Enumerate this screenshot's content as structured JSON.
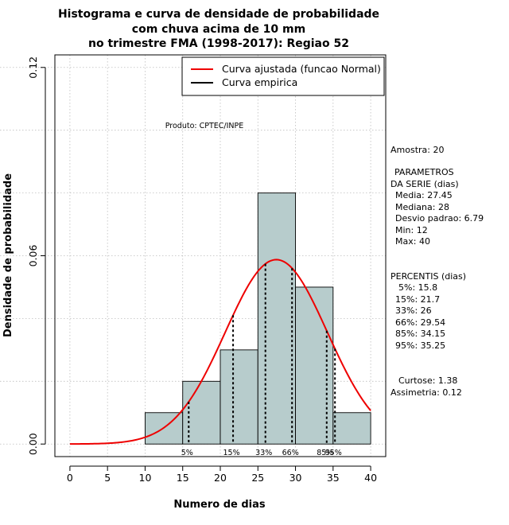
{
  "chart_data": {
    "type": "histogram",
    "title_lines": [
      "Histograma e curva de densidade de probabilidade",
      "com chuva acima de 10 mm",
      "no trimestre FMA (1998-2017): Regiao 52"
    ],
    "xlabel": "Numero de dias",
    "ylabel": "Densidade de probabilidade",
    "xlim": [
      -2,
      42
    ],
    "ylim": [
      -0.004,
      0.124
    ],
    "xticks": [
      0,
      5,
      10,
      15,
      20,
      25,
      30,
      35,
      40
    ],
    "yticks": [
      0.0,
      0.06,
      0.12
    ],
    "ytick_labels": [
      "0.00",
      "0.06",
      "0.12"
    ],
    "grid": true,
    "bins": [
      {
        "start": 10,
        "end": 15,
        "density": 0.01
      },
      {
        "start": 15,
        "end": 20,
        "density": 0.02
      },
      {
        "start": 20,
        "end": 25,
        "density": 0.03
      },
      {
        "start": 25,
        "end": 30,
        "density": 0.08
      },
      {
        "start": 30,
        "end": 35,
        "density": 0.05
      },
      {
        "start": 35,
        "end": 40,
        "density": 0.01
      }
    ],
    "normal_fit": {
      "mean": 27.45,
      "sd": 6.79,
      "color": "#ee0000"
    },
    "percentiles": [
      {
        "label": "5%",
        "value": 15.8
      },
      {
        "label": "15%",
        "value": 21.7
      },
      {
        "label": "33%",
        "value": 26
      },
      {
        "label": "66%",
        "value": 29.54
      },
      {
        "label": "85%",
        "value": 34.15
      },
      {
        "label": "95%",
        "value": 35.25
      }
    ],
    "legend": [
      {
        "label": "Curva ajustada (funcao Normal)",
        "color": "#ee0000"
      },
      {
        "label": "Curva empirica",
        "color": "#000000"
      }
    ],
    "legend_position": "top-right",
    "annotation": "Produto: CPTEC/INPE",
    "bar_fill": "#b7cccc"
  },
  "stats": {
    "amostra": "Amostra: 20",
    "param_header_1": "PARAMETROS",
    "param_header_2": "DA SERIE (dias)",
    "media": "Media: 27.45",
    "mediana": "Mediana: 28",
    "desvio": "Desvio padrao: 6.79",
    "min": "Min: 12",
    "max": "Max: 40",
    "perc_header": "PERCENTIS (dias)",
    "p5": "5%: 15.8",
    "p15": "15%: 21.7",
    "p33": "33%: 26",
    "p66": "66%: 29.54",
    "p85": "85%: 34.15",
    "p95": "95%: 35.25",
    "curtose": "Curtose: 1.38",
    "assimetria": "Assimetria: 0.12"
  }
}
